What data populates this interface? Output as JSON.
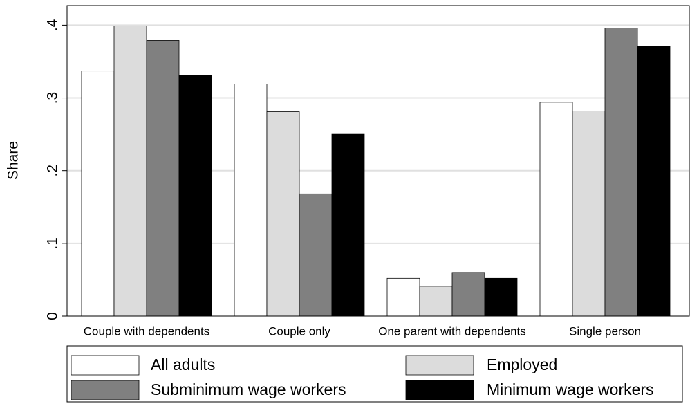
{
  "chart_data": {
    "type": "bar",
    "y_label": "Share",
    "categories": [
      "Couple with dependents",
      "Couple only",
      "One parent with dependents",
      "Single person"
    ],
    "series": [
      {
        "name": "All adults",
        "color": "#ffffff",
        "values": [
          0.337,
          0.319,
          0.052,
          0.294
        ]
      },
      {
        "name": "Employed",
        "color": "#dcdcdc",
        "values": [
          0.399,
          0.281,
          0.041,
          0.282
        ]
      },
      {
        "name": "Subminimum wage workers",
        "color": "#808080",
        "values": [
          0.379,
          0.168,
          0.06,
          0.396
        ]
      },
      {
        "name": "Minimum wage workers",
        "color": "#000000",
        "values": [
          0.331,
          0.25,
          0.052,
          0.371
        ]
      }
    ],
    "ylim": [
      0,
      0.427
    ],
    "yticks": [
      0,
      {
        "value": 0.1,
        "label": ".1"
      },
      {
        "value": 0.2,
        "label": ".2"
      },
      {
        "value": 0.3,
        "label": ".3"
      },
      {
        "value": 0.4,
        "label": ".4"
      }
    ],
    "grid": true
  }
}
